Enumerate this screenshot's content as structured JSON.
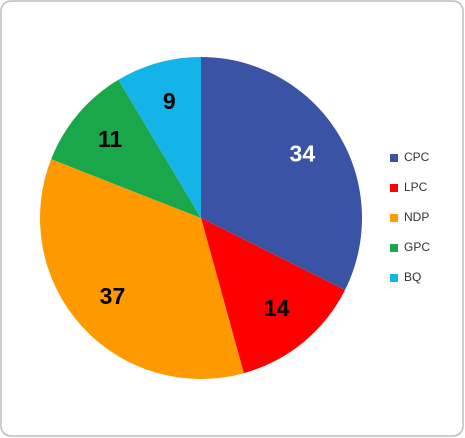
{
  "chart_data": {
    "type": "pie",
    "categories": [
      "CPC",
      "LPC",
      "NDP",
      "GPC",
      "BQ"
    ],
    "values": [
      34,
      14,
      37,
      11,
      9
    ],
    "colors": [
      "#3a53a4",
      "#ff0000",
      "#ff9900",
      "#1aa64a",
      "#14b4e8"
    ],
    "label_colors": [
      "#ffffff",
      "#000000",
      "#000000",
      "#000000",
      "#000000"
    ],
    "legend": "right"
  }
}
